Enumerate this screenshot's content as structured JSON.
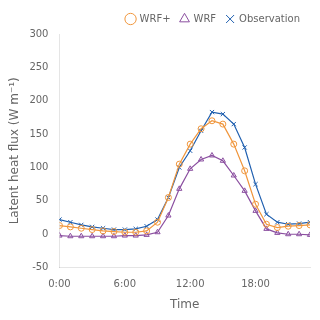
{
  "chart_data": {
    "type": "line",
    "x_label": "Time",
    "y_label": "Latent heat flux (W m⁻¹)",
    "x": [
      0,
      1,
      2,
      3,
      4,
      5,
      6,
      7,
      8,
      9,
      10,
      11,
      12,
      13,
      14,
      15,
      16,
      17,
      18,
      19,
      20,
      21,
      22,
      23
    ],
    "series": [
      {
        "name": "WRF+",
        "color": "#f0963c",
        "marker": "circle",
        "line_style": "solid",
        "values": [
          13,
          11,
          9,
          7,
          5,
          4,
          3,
          3,
          5,
          18,
          55,
          105,
          135,
          158,
          170,
          165,
          135,
          95,
          45,
          15,
          10,
          12,
          13,
          14
        ]
      },
      {
        "name": "WRF",
        "color": "#8b4fa0",
        "marker": "triangle",
        "line_style": "solid",
        "values": [
          -2,
          -3,
          -3,
          -3,
          -3,
          -3,
          -2,
          -2,
          -1,
          3,
          28,
          68,
          98,
          112,
          118,
          110,
          88,
          65,
          35,
          8,
          2,
          0,
          0,
          -1
        ]
      },
      {
        "name": "Observation",
        "color": "#2060b0",
        "marker": "x",
        "line_style": "solid",
        "values": [
          22,
          18,
          14,
          11,
          9,
          7,
          7,
          8,
          12,
          22,
          55,
          100,
          125,
          155,
          183,
          180,
          165,
          130,
          75,
          30,
          18,
          15,
          16,
          18
        ]
      }
    ],
    "xlim": [
      0,
      23
    ],
    "xticks": [
      {
        "value": 0,
        "label": "0:00"
      },
      {
        "value": 6,
        "label": "6:00"
      },
      {
        "value": 12,
        "label": "12:00"
      },
      {
        "value": 18,
        "label": "18:00"
      }
    ],
    "ylim": [
      -50,
      300
    ],
    "yticks": [
      -50,
      0,
      50,
      100,
      150,
      200,
      250,
      300
    ],
    "grid": false,
    "legend": "upper right"
  }
}
